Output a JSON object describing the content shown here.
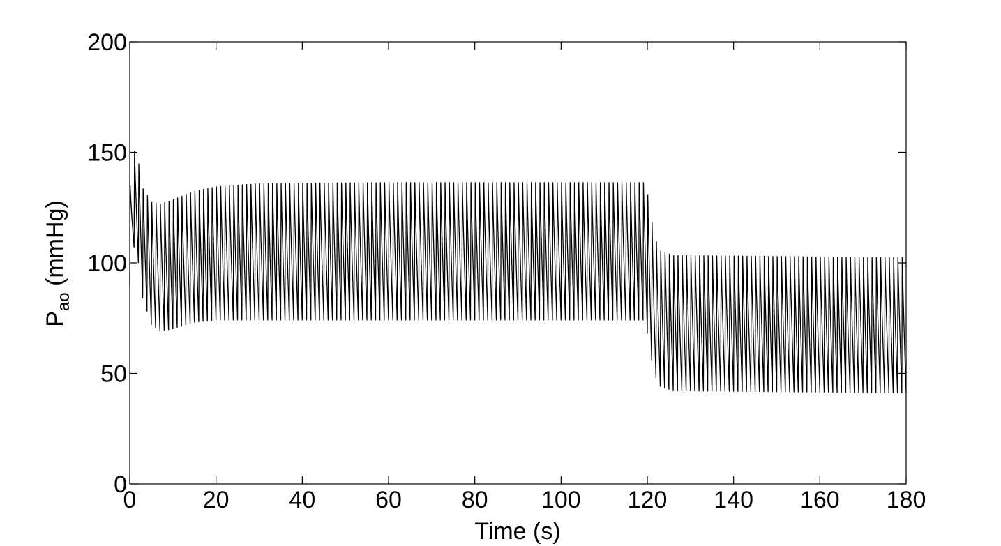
{
  "chart_data": {
    "type": "line",
    "title": "",
    "xlabel": "Time (s)",
    "ylabel": {
      "main": "P",
      "subscript": "ao",
      "unit": " (mmHg)"
    },
    "xlim": [
      0,
      180
    ],
    "ylim": [
      0,
      200
    ],
    "xticks": [
      0,
      20,
      40,
      60,
      80,
      100,
      120,
      140,
      160,
      180
    ],
    "yticks": [
      0,
      50,
      100,
      150,
      200
    ],
    "grid": false,
    "legend": "none",
    "line_color": "#000000",
    "series": [
      {
        "description": "aortic pressure waveform (oscillating between systolic and diastolic envelopes)",
        "period_s": 1.0,
        "envelope_points": [
          {
            "t": 0,
            "systolic": 135,
            "diastolic": 90
          },
          {
            "t": 1,
            "systolic": 153,
            "diastolic": 107
          },
          {
            "t": 2,
            "systolic": 148,
            "diastolic": 100
          },
          {
            "t": 3,
            "systolic": 136,
            "diastolic": 84
          },
          {
            "t": 5,
            "systolic": 130,
            "diastolic": 72
          },
          {
            "t": 7,
            "systolic": 129,
            "diastolic": 69
          },
          {
            "t": 10,
            "systolic": 131,
            "diastolic": 70
          },
          {
            "t": 15,
            "systolic": 135,
            "diastolic": 73
          },
          {
            "t": 20,
            "systolic": 137,
            "diastolic": 74
          },
          {
            "t": 30,
            "systolic": 138.5,
            "diastolic": 74
          },
          {
            "t": 60,
            "systolic": 139,
            "diastolic": 74
          },
          {
            "t": 119.5,
            "systolic": 139,
            "diastolic": 74
          },
          {
            "t": 120.5,
            "systolic": 130,
            "diastolic": 62
          },
          {
            "t": 121.5,
            "systolic": 115,
            "diastolic": 50
          },
          {
            "t": 123,
            "systolic": 108,
            "diastolic": 44
          },
          {
            "t": 126,
            "systolic": 106,
            "diastolic": 42
          },
          {
            "t": 180,
            "systolic": 105,
            "diastolic": 41
          }
        ]
      }
    ]
  }
}
